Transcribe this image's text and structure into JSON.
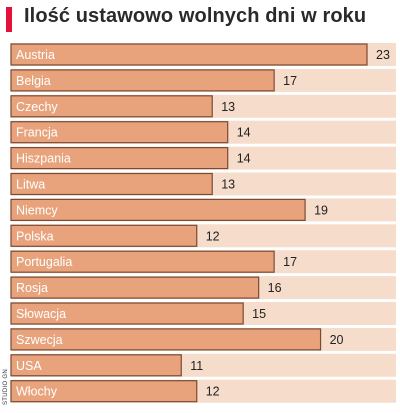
{
  "chart_data": {
    "type": "bar",
    "orientation": "horizontal",
    "title": "Ilość ustawowo wolnych dni w roku",
    "categories": [
      "Austria",
      "Belgia",
      "Czechy",
      "Francja",
      "Hiszpania",
      "Litwa",
      "Niemcy",
      "Polska",
      "Portugalia",
      "Rosja",
      "Słowacja",
      "Szwecja",
      "USA",
      "Włochy"
    ],
    "values": [
      23,
      17,
      13,
      14,
      14,
      13,
      19,
      12,
      17,
      16,
      15,
      20,
      11,
      12
    ],
    "xlim": [
      0,
      23
    ],
    "grid": false,
    "legend": "none",
    "data_labels": true
  },
  "credit": "STUDIO GN",
  "colors": {
    "bar_fill": "#e8a37c",
    "bar_stroke": "#7a4a33",
    "band": "#f6dccb",
    "accent": "#e4123b",
    "label_text": "#ffffff",
    "value_text": "#222222"
  }
}
